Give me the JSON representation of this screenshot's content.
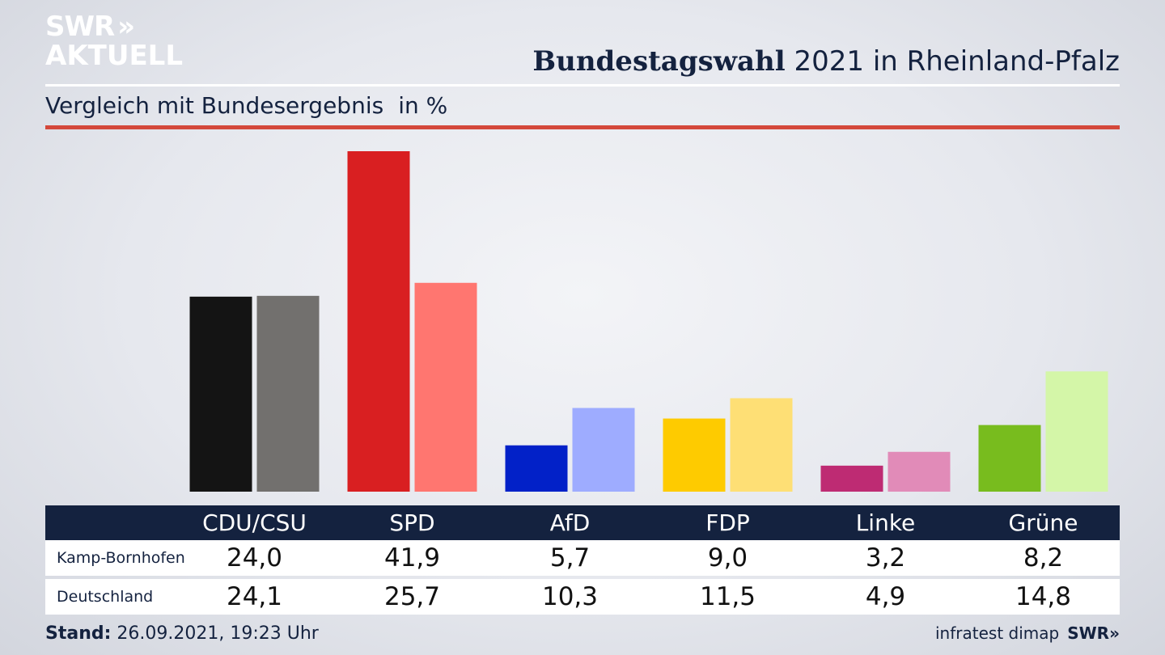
{
  "logo": {
    "line1": "SWR",
    "chevrons": "»",
    "line2": "AKTUELL"
  },
  "header": {
    "title_bold": "Bundestagswahl",
    "title_rest": "2021 in Rheinland-Pfalz"
  },
  "subtitle": {
    "text": "Vergleich mit Bundesergebnis",
    "unit": "in %"
  },
  "table": {
    "rows": [
      {
        "label": "Kamp-Bornhofen",
        "values": [
          "24,0",
          "41,9",
          "5,7",
          "9,0",
          "3,2",
          "8,2"
        ]
      },
      {
        "label": "Deutschland",
        "values": [
          "24,1",
          "25,7",
          "10,3",
          "11,5",
          "4,9",
          "14,8"
        ]
      }
    ]
  },
  "footer": {
    "stand_label": "Stand:",
    "stand_value": "26.09.2021, 19:23 Uhr",
    "source": "infratest dimap",
    "brand": "SWR»"
  },
  "chart_data": {
    "type": "bar",
    "title": "Bundestagswahl 2021 in Rheinland-Pfalz",
    "subtitle": "Vergleich mit Bundesergebnis in %",
    "categories": [
      "CDU/CSU",
      "SPD",
      "AfD",
      "FDP",
      "Linke",
      "Grüne"
    ],
    "series": [
      {
        "name": "Kamp-Bornhofen",
        "values": [
          24.0,
          41.9,
          5.7,
          9.0,
          3.2,
          8.2
        ],
        "colors": [
          "#141414",
          "#d91f21",
          "#0221c8",
          "#fecb00",
          "#be2b73",
          "#78bc1e"
        ]
      },
      {
        "name": "Deutschland",
        "values": [
          24.1,
          25.7,
          10.3,
          11.5,
          4.9,
          14.8
        ],
        "colors": [
          "#72706e",
          "#ff7670",
          "#9eacff",
          "#fedf75",
          "#e18bb8",
          "#d4f6a8"
        ]
      }
    ],
    "ylim": [
      0,
      41.9
    ]
  }
}
